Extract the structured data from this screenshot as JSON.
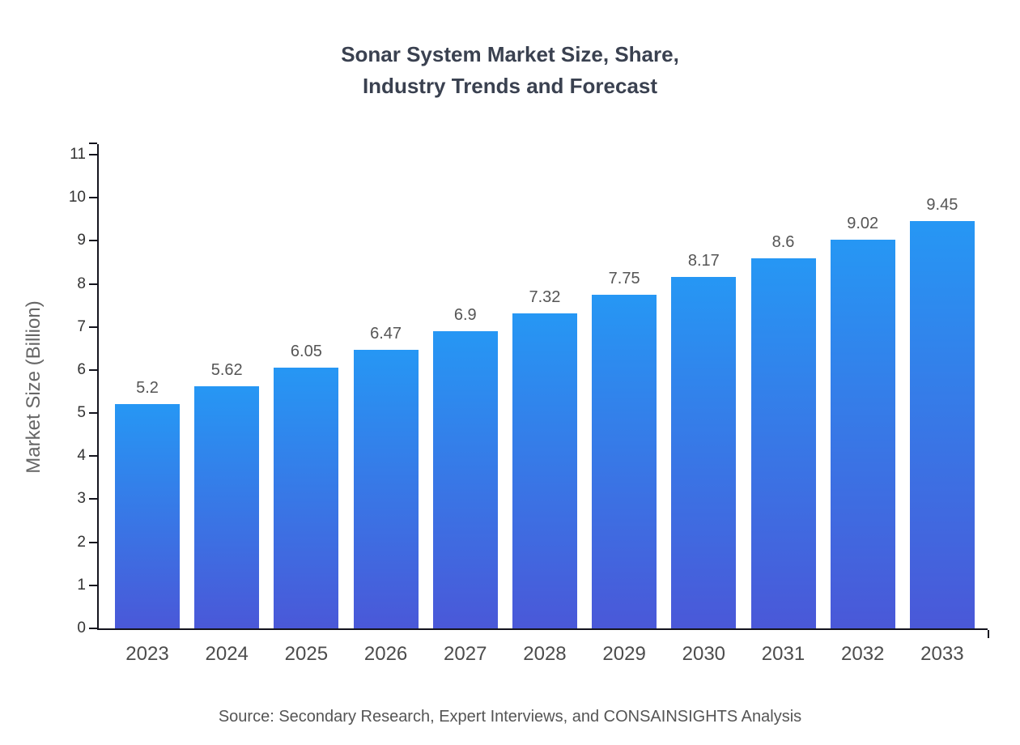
{
  "chart_data": {
    "type": "bar",
    "title": "Sonar System Market Size, Share, Industry Trends and Forecast",
    "title_lines": [
      "Sonar System Market Size, Share,",
      "Industry Trends and Forecast"
    ],
    "xlabel": "",
    "ylabel": "Market Size (Billion)",
    "categories": [
      "2023",
      "2024",
      "2025",
      "2026",
      "2027",
      "2028",
      "2029",
      "2030",
      "2031",
      "2032",
      "2033"
    ],
    "values": [
      5.2,
      5.62,
      6.05,
      6.47,
      6.9,
      7.32,
      7.75,
      8.17,
      8.6,
      9.02,
      9.45
    ],
    "value_labels": [
      "5.2",
      "5.62",
      "6.05",
      "6.47",
      "6.9",
      "7.32",
      "7.75",
      "8.17",
      "8.6",
      "9.02",
      "9.45"
    ],
    "ylim": [
      0,
      11
    ],
    "y_ticks": [
      0,
      1,
      2,
      3,
      4,
      5,
      6,
      7,
      8,
      9,
      10,
      11
    ],
    "grid": false,
    "legend": "none",
    "colors": {
      "bar_top": "#2697f4",
      "bar_bottom": "#4a58d8",
      "axis": "#14141e",
      "title_text": "#3a4150",
      "tick_text": "#333333",
      "value_label_text": "#555555"
    },
    "source": "Source: Secondary Research, Expert Interviews, and CONSAINSIGHTS Analysis"
  }
}
